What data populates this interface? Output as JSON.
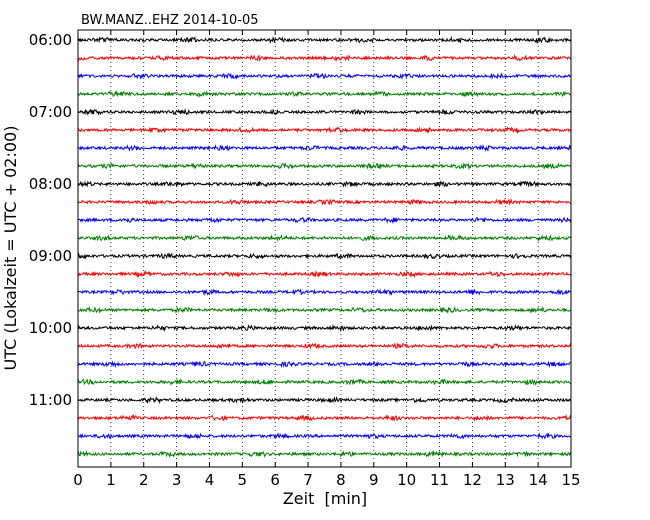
{
  "chart_data": {
    "type": "line",
    "title": "BW.MANZ..EHZ 2014-10-05",
    "xlabel": "Zeit  [min]",
    "ylabel": "UTC (Lokalzeit = UTC + 02:00)",
    "xlim": [
      0,
      15
    ],
    "x_ticks": [
      "0",
      "1",
      "2",
      "3",
      "4",
      "5",
      "6",
      "7",
      "8",
      "9",
      "10",
      "11",
      "12",
      "13",
      "14",
      "15"
    ],
    "y_ticks": [
      "06:00",
      "07:00",
      "08:00",
      "09:00",
      "10:00",
      "11:00"
    ],
    "grid": "vertical dotted lines at each minute",
    "row_interval_minutes": 15,
    "trace_colors": [
      "#000000",
      "#ff0000",
      "#0000ff",
      "#008000"
    ],
    "series": [
      {
        "start": "06:00"
      },
      {
        "start": "06:15"
      },
      {
        "start": "06:30"
      },
      {
        "start": "06:45"
      },
      {
        "start": "07:00"
      },
      {
        "start": "07:15"
      },
      {
        "start": "07:30"
      },
      {
        "start": "07:45"
      },
      {
        "start": "08:00"
      },
      {
        "start": "08:15"
      },
      {
        "start": "08:30"
      },
      {
        "start": "08:45"
      },
      {
        "start": "09:00"
      },
      {
        "start": "09:15"
      },
      {
        "start": "09:30"
      },
      {
        "start": "09:45"
      },
      {
        "start": "10:00"
      },
      {
        "start": "10:15"
      },
      {
        "start": "10:30"
      },
      {
        "start": "10:45"
      },
      {
        "start": "11:00"
      },
      {
        "start": "11:15"
      },
      {
        "start": "11:30"
      },
      {
        "start": "11:45"
      }
    ]
  }
}
